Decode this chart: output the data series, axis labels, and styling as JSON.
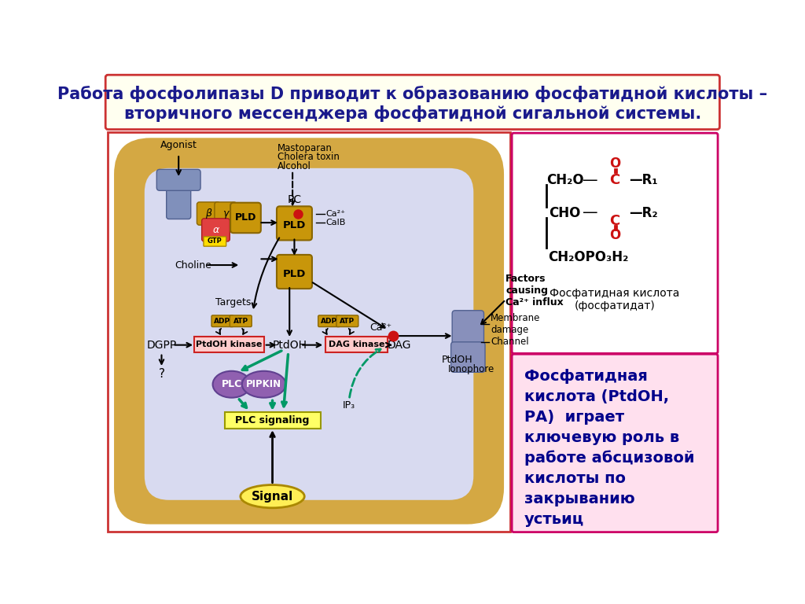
{
  "title_text_line1": "Работа фосфолипазы D приводит к образованию фосфатидной кислоты –",
  "title_text_line2": "вторичного мессенджера фосфатидной сигальной системы.",
  "title_bg": "#fffff0",
  "title_border": "#cc3333",
  "title_color": "#1a1a8c",
  "bg_color": "#ffffff",
  "main_border": "#cc3333",
  "membrane_color": "#d4a843",
  "cell_color": "#d8daf0",
  "pld_color": "#c8960a",
  "pld_edge": "#8a6600",
  "receptor_color": "#8090bb",
  "receptor_edge": "#506090",
  "beta_gamma_color": "#c8960a",
  "alpha_color": "#e04040",
  "alpha_edge": "#aa2020",
  "gtp_color": "#ffdd00",
  "gtp_edge": "#aa8800",
  "kinase_bg": "#ffcccc",
  "kinase_edge": "#cc2222",
  "plc_color": "#9060b0",
  "plc_edge": "#604090",
  "plcsig_bg": "#ffff66",
  "plcsig_edge": "#999900",
  "signal_color": "#ffee55",
  "signal_edge": "#aa8800",
  "ca_red": "#cc1111",
  "arrow_green": "#009966",
  "channel_color": "#8890bb",
  "channel_edge": "#506090",
  "right1_border": "#cc0066",
  "right1_bg": "#ffffff",
  "right2_border": "#cc0066",
  "right2_bg": "#ffe0ee",
  "chem_red": "#cc1111",
  "note_color": "#00008B",
  "note_text": "Фосфатидная\nкислота (PtdOH,\nРА)  играет\nключевую роль в\nработе абсцизовой\nкислоты по\nзакрыванию\nустьиц"
}
